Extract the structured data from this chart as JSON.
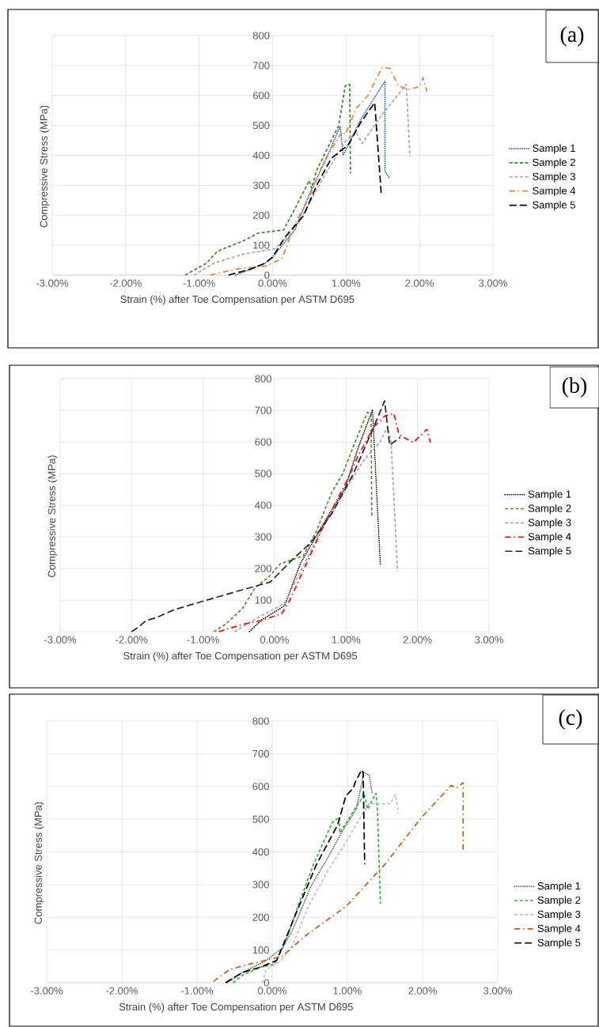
{
  "chart_data": [
    {
      "type": "line",
      "annotations": [
        "(a)"
      ],
      "xlabel": "Strain (%) after Toe Compensation per ASTM D695",
      "ylabel": "Compressive Stress (MPa)",
      "xlim": [
        -3,
        3
      ],
      "ylim": [
        0,
        800
      ],
      "xticks": [
        {
          "value": -3,
          "label": "-3.00%"
        },
        {
          "value": -2,
          "label": "-2.00%"
        },
        {
          "value": -1,
          "label": "-1.00%"
        },
        {
          "value": 0,
          "label": "0.00%"
        },
        {
          "value": 1,
          "label": "1.00%"
        },
        {
          "value": 2,
          "label": "2.00%"
        },
        {
          "value": 3,
          "label": "3.00%"
        }
      ],
      "yticks": [
        0,
        100,
        200,
        300,
        400,
        500,
        600,
        700,
        800
      ],
      "grid": true,
      "legend": "right",
      "series": [
        {
          "name": "Sample 1",
          "color": "#2f5597",
          "line_style": "dotted",
          "x": [
            -0.5,
            -0.1,
            0.0,
            0.3,
            0.5,
            0.75,
            0.92,
            0.96,
            1.2,
            1.53,
            1.53,
            1.6
          ],
          "values": [
            0,
            40,
            60,
            150,
            270,
            400,
            497,
            400,
            520,
            648,
            347,
            321
          ]
        },
        {
          "name": "Sample 2",
          "color": "#38862a",
          "line_style": "dashed",
          "x": [
            -1.19,
            -0.9,
            -0.75,
            -0.4,
            -0.2,
            0.15,
            0.3,
            0.5,
            0.53,
            0.6,
            0.9,
            0.99,
            1.05,
            1.06
          ],
          "values": [
            0,
            40,
            80,
            114,
            140,
            151,
            220,
            316,
            290,
            350,
            500,
            633,
            637,
            340
          ]
        },
        {
          "name": "Sample 3",
          "color": "#a6a6a6",
          "line_style": "dashed",
          "x": [
            -1.07,
            -0.8,
            -0.4,
            0.03,
            0.3,
            0.5,
            0.7,
            1.0,
            1.14,
            1.22,
            1.49,
            1.82,
            1.87
          ],
          "values": [
            0,
            40,
            70,
            88,
            150,
            240,
            330,
            450,
            475,
            440,
            536,
            637,
            396
          ]
        },
        {
          "name": "Sample 4",
          "color": "#ed7d31",
          "line_style": "dashdot",
          "x": [
            -0.85,
            -0.5,
            -0.1,
            0.0,
            0.13,
            0.3,
            0.5,
            0.7,
            0.95,
            0.99,
            1.14,
            1.3,
            1.49,
            1.6,
            1.71,
            1.85,
            2.0,
            2.05,
            2.1
          ],
          "values": [
            0,
            20,
            30,
            40,
            57,
            170,
            260,
            380,
            480,
            470,
            558,
            600,
            694,
            690,
            633,
            620,
            630,
            659,
            613
          ]
        },
        {
          "name": "Sample 5",
          "color": "#000000",
          "line_style": "longdashed",
          "x": [
            -0.6,
            -0.3,
            -0.1,
            0.0,
            0.17,
            0.42,
            0.6,
            0.8,
            1.03,
            1.2,
            1.39,
            1.48
          ],
          "values": [
            0,
            20,
            40,
            60,
            127,
            198,
            300,
            390,
            435,
            510,
            576,
            268
          ]
        }
      ]
    },
    {
      "type": "line",
      "annotations": [
        "(b)"
      ],
      "xlabel": "Strain (%) after Toe Compensation per ASTM D695",
      "ylabel": "Compressive Stress (MPa)",
      "xlim": [
        -3,
        3
      ],
      "ylim": [
        0,
        800
      ],
      "xticks": [
        {
          "value": -3,
          "label": "-3.00%"
        },
        {
          "value": -2,
          "label": "-2.00%"
        },
        {
          "value": -1,
          "label": "-1.00%"
        },
        {
          "value": 0,
          "label": "0.00%"
        },
        {
          "value": 1,
          "label": "1.00%"
        },
        {
          "value": 2,
          "label": "2.00%"
        },
        {
          "value": 3,
          "label": "3.00%"
        }
      ],
      "yticks": [
        100,
        200,
        300,
        400,
        500,
        600,
        700,
        800
      ],
      "grid": true,
      "legend": "right",
      "series": [
        {
          "name": "Sample 1",
          "color": "#000000",
          "line_style": "dotted",
          "x": [
            -0.35,
            -0.19,
            0.14,
            0.36,
            0.66,
            0.99,
            1.17,
            1.37,
            1.48
          ],
          "values": [
            0,
            36,
            82,
            215,
            332,
            457,
            582,
            702,
            211
          ]
        },
        {
          "name": "Sample 2",
          "color": "#4e8f2e",
          "line_style": "dashed",
          "x": [
            -0.85,
            -0.69,
            -0.45,
            -0.27,
            -0.08,
            0.08,
            0.21,
            0.4,
            0.58,
            0.8,
            0.95,
            1.14,
            1.3,
            1.35,
            1.36
          ],
          "values": [
            0,
            23,
            73,
            140,
            173,
            215,
            225,
            240,
            315,
            440,
            498,
            607,
            694,
            690,
            361
          ]
        },
        {
          "name": "Sample 3",
          "color": "#a6a6a6",
          "line_style": "dashed",
          "x": [
            -0.56,
            -0.3,
            0.14,
            0.4,
            0.66,
            0.95,
            1.24,
            1.47,
            1.58,
            1.63,
            1.72
          ],
          "values": [
            0,
            36,
            90,
            207,
            323,
            432,
            540,
            598,
            648,
            602,
            190
          ]
        },
        {
          "name": "Sample 4",
          "color": "#ff0000",
          "line_style": "dashdot",
          "x": [
            -0.78,
            -0.45,
            -0.19,
            0.1,
            0.21,
            0.43,
            0.66,
            1.04,
            1.17,
            1.39,
            1.54,
            1.67,
            1.74,
            1.94,
            2.13,
            2.18
          ],
          "values": [
            0,
            23,
            35,
            57,
            98,
            207,
            323,
            490,
            557,
            648,
            682,
            690,
            623,
            598,
            640,
            598
          ]
        },
        {
          "name": "Sample 5",
          "color": "#262626",
          "line_style": "longdashed",
          "x": [
            -2.0,
            -1.9,
            -1.8,
            -1.65,
            -1.41,
            -1.1,
            -0.52,
            -0.06,
            0.25,
            0.51,
            0.8,
            1.1,
            1.39,
            1.54,
            1.61,
            1.76
          ],
          "values": [
            0,
            15,
            35,
            45,
            69,
            90,
            128,
            157,
            228,
            282,
            373,
            498,
            648,
            730,
            590,
            615
          ]
        }
      ]
    },
    {
      "type": "line",
      "annotations": [
        "(c)"
      ],
      "xlabel": "Strain (%) after Toe Compensation per ASTM D695",
      "ylabel": "Compressive Stress (MPa)",
      "xlim": [
        -3,
        3
      ],
      "ylim": [
        0,
        800
      ],
      "xticks": [
        {
          "value": -3,
          "label": "-3.00%"
        },
        {
          "value": -2,
          "label": "-2.00%"
        },
        {
          "value": -1,
          "label": "-1.00%"
        },
        {
          "value": 0,
          "label": "0.00%"
        },
        {
          "value": 1,
          "label": "1.00%"
        },
        {
          "value": 2,
          "label": "2.00%"
        },
        {
          "value": 3,
          "label": "3.00%"
        }
      ],
      "yticks": [
        0,
        100,
        200,
        300,
        400,
        500,
        600,
        700,
        800
      ],
      "grid": true,
      "legend": "right",
      "series": [
        {
          "name": "Sample 1",
          "color": "#595959",
          "line_style": "dotted",
          "x": [
            -0.6,
            -0.39,
            -0.11,
            0.13,
            0.27,
            0.52,
            0.73,
            0.94,
            1.12,
            1.2,
            1.22,
            1.29,
            1.33
          ],
          "values": [
            0,
            32,
            64,
            104,
            161,
            297,
            378,
            466,
            531,
            619,
            643,
            635,
            579
          ]
        },
        {
          "name": "Sample 2",
          "color": "#33b233",
          "line_style": "dashed",
          "x": [
            -0.52,
            -0.39,
            -0.15,
            0.03,
            0.17,
            0.34,
            0.55,
            0.8,
            0.89,
            0.9,
            1.01,
            1.12,
            1.19,
            1.22,
            1.27,
            1.38,
            1.4,
            1.44
          ],
          "values": [
            0,
            24,
            48,
            56,
            121,
            233,
            362,
            490,
            506,
            458,
            498,
            539,
            563,
            579,
            531,
            579,
            531,
            241
          ]
        },
        {
          "name": "Sample 3",
          "color": "#bfbfbf",
          "line_style": "dashed",
          "x": [
            -0.13,
            -0.08,
            0.1,
            0.27,
            0.48,
            0.73,
            0.97,
            1.22,
            1.29,
            1.57,
            1.64,
            1.68
          ],
          "values": [
            0,
            40,
            64,
            113,
            233,
            338,
            426,
            523,
            547,
            547,
            575,
            518
          ]
        },
        {
          "name": "Sample 4",
          "color": "#c55a11",
          "line_style": "dashdot",
          "x": [
            -0.78,
            -0.57,
            -0.32,
            0.13,
            0.45,
            0.98,
            1.5,
            1.99,
            2.38,
            2.45,
            2.54,
            2.54
          ],
          "values": [
            4,
            40,
            56,
            80,
            145,
            233,
            362,
            506,
            603,
            595,
            611,
            402
          ]
        },
        {
          "name": "Sample 5",
          "color": "#000000",
          "line_style": "longdashed",
          "x": [
            -0.62,
            -0.39,
            -0.15,
            0.06,
            0.17,
            0.34,
            0.59,
            0.87,
            0.98,
            1.08,
            1.1,
            1.19,
            1.21,
            1.23
          ],
          "values": [
            0,
            32,
            48,
            68,
            129,
            225,
            362,
            482,
            571,
            595,
            611,
            651,
            643,
            362
          ]
        }
      ]
    }
  ]
}
